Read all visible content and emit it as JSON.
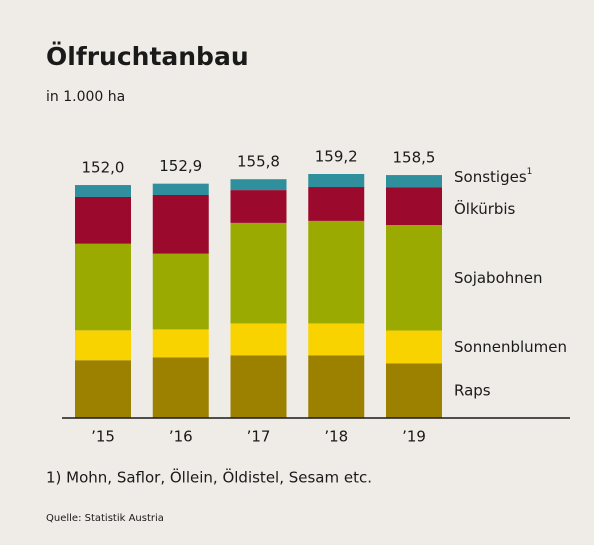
{
  "chart_data": {
    "type": "stacked_bar",
    "title": "Ölfruchtanbau",
    "subtitle": "in 1.000 ha",
    "categories": [
      "’15",
      "’16",
      "’17",
      "’18",
      "’19"
    ],
    "series": [
      {
        "name": "Raps",
        "color": "#9c8000",
        "values": [
          37.7,
          39.6,
          40.9,
          40.9,
          35.7
        ]
      },
      {
        "name": "Sonnenblumen",
        "color": "#f9d300",
        "values": [
          19.5,
          18.2,
          20.8,
          20.8,
          21.4
        ]
      },
      {
        "name": "Sojabohnen",
        "color": "#9aaa00",
        "values": [
          56.5,
          49.4,
          65.6,
          66.9,
          68.8
        ]
      },
      {
        "name": "Ölkürbis",
        "color": "#9b0a2d",
        "values": [
          30.5,
          38.3,
          21.4,
          22.1,
          24.7
        ]
      },
      {
        "name": "Sonstiges",
        "color": "#2f8f9c",
        "values": [
          7.8,
          7.4,
          7.1,
          8.5,
          7.9
        ],
        "note_marker": "1"
      }
    ],
    "totals": [
      152.0,
      152.9,
      155.8,
      159.2,
      158.5
    ],
    "total_labels": [
      "152,0",
      "152,9",
      "155,8",
      "159,2",
      "158,5"
    ],
    "footnote": "1) Mohn, Saflor, Öllein, Öldistel, Sesam etc.",
    "source": "Quelle: Statistik Austria"
  }
}
